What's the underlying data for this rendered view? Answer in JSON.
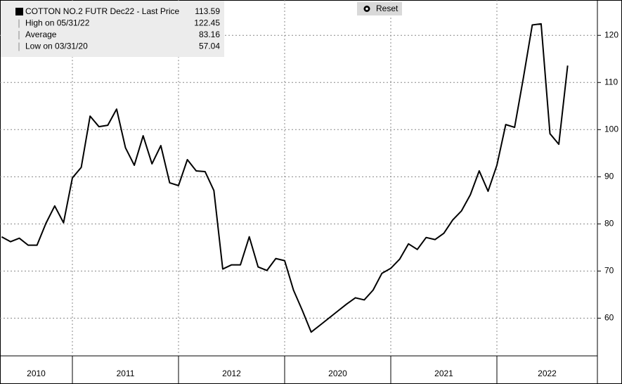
{
  "chart_data": {
    "type": "line",
    "legend": [
      {
        "label": "COTTON NO.2 FUTR Dec22 - Last Price",
        "value": 113.59
      },
      {
        "label": "High on 05/31/22",
        "value": 122.45
      },
      {
        "label": "Average",
        "value": 83.16
      },
      {
        "label": "Low on 03/31/20",
        "value": 57.04
      }
    ],
    "reset_button": "Reset",
    "color": "#000000",
    "grid": true,
    "ylim": [
      52,
      127.5
    ],
    "yticks": [
      60,
      70,
      80,
      90,
      100,
      110,
      120
    ],
    "groups": [
      {
        "label": "2010",
        "values": [
          77.26,
          76.22,
          76.96,
          75.48,
          75.48,
          80.09,
          83.81,
          80.24
        ]
      },
      {
        "label": "2011",
        "values": [
          89.76,
          91.99,
          102.86,
          100.63,
          100.92,
          104.35,
          96.16,
          92.44,
          98.69,
          92.74,
          96.61,
          88.72
        ]
      },
      {
        "label": "2012",
        "values": [
          88.13,
          93.63,
          91.25,
          91.1,
          87.08,
          70.42,
          71.31,
          71.31,
          77.26,
          70.86,
          70.12,
          72.65
        ]
      },
      {
        "label": "2020",
        "values": [
          72.2,
          65.95,
          61.64,
          57.04,
          58.51,
          60.0,
          61.49,
          62.98,
          64.32,
          63.87,
          65.95,
          69.52
        ]
      },
      {
        "label": "2021",
        "values": [
          70.57,
          72.5,
          75.77,
          74.58,
          77.11,
          76.67,
          78.01,
          80.83,
          82.77,
          86.19,
          91.25,
          86.93
        ]
      },
      {
        "label": "2022",
        "values": [
          92.44,
          101.07,
          100.48,
          111.04,
          122.2,
          122.45,
          99.14,
          96.9,
          113.59
        ]
      }
    ]
  }
}
